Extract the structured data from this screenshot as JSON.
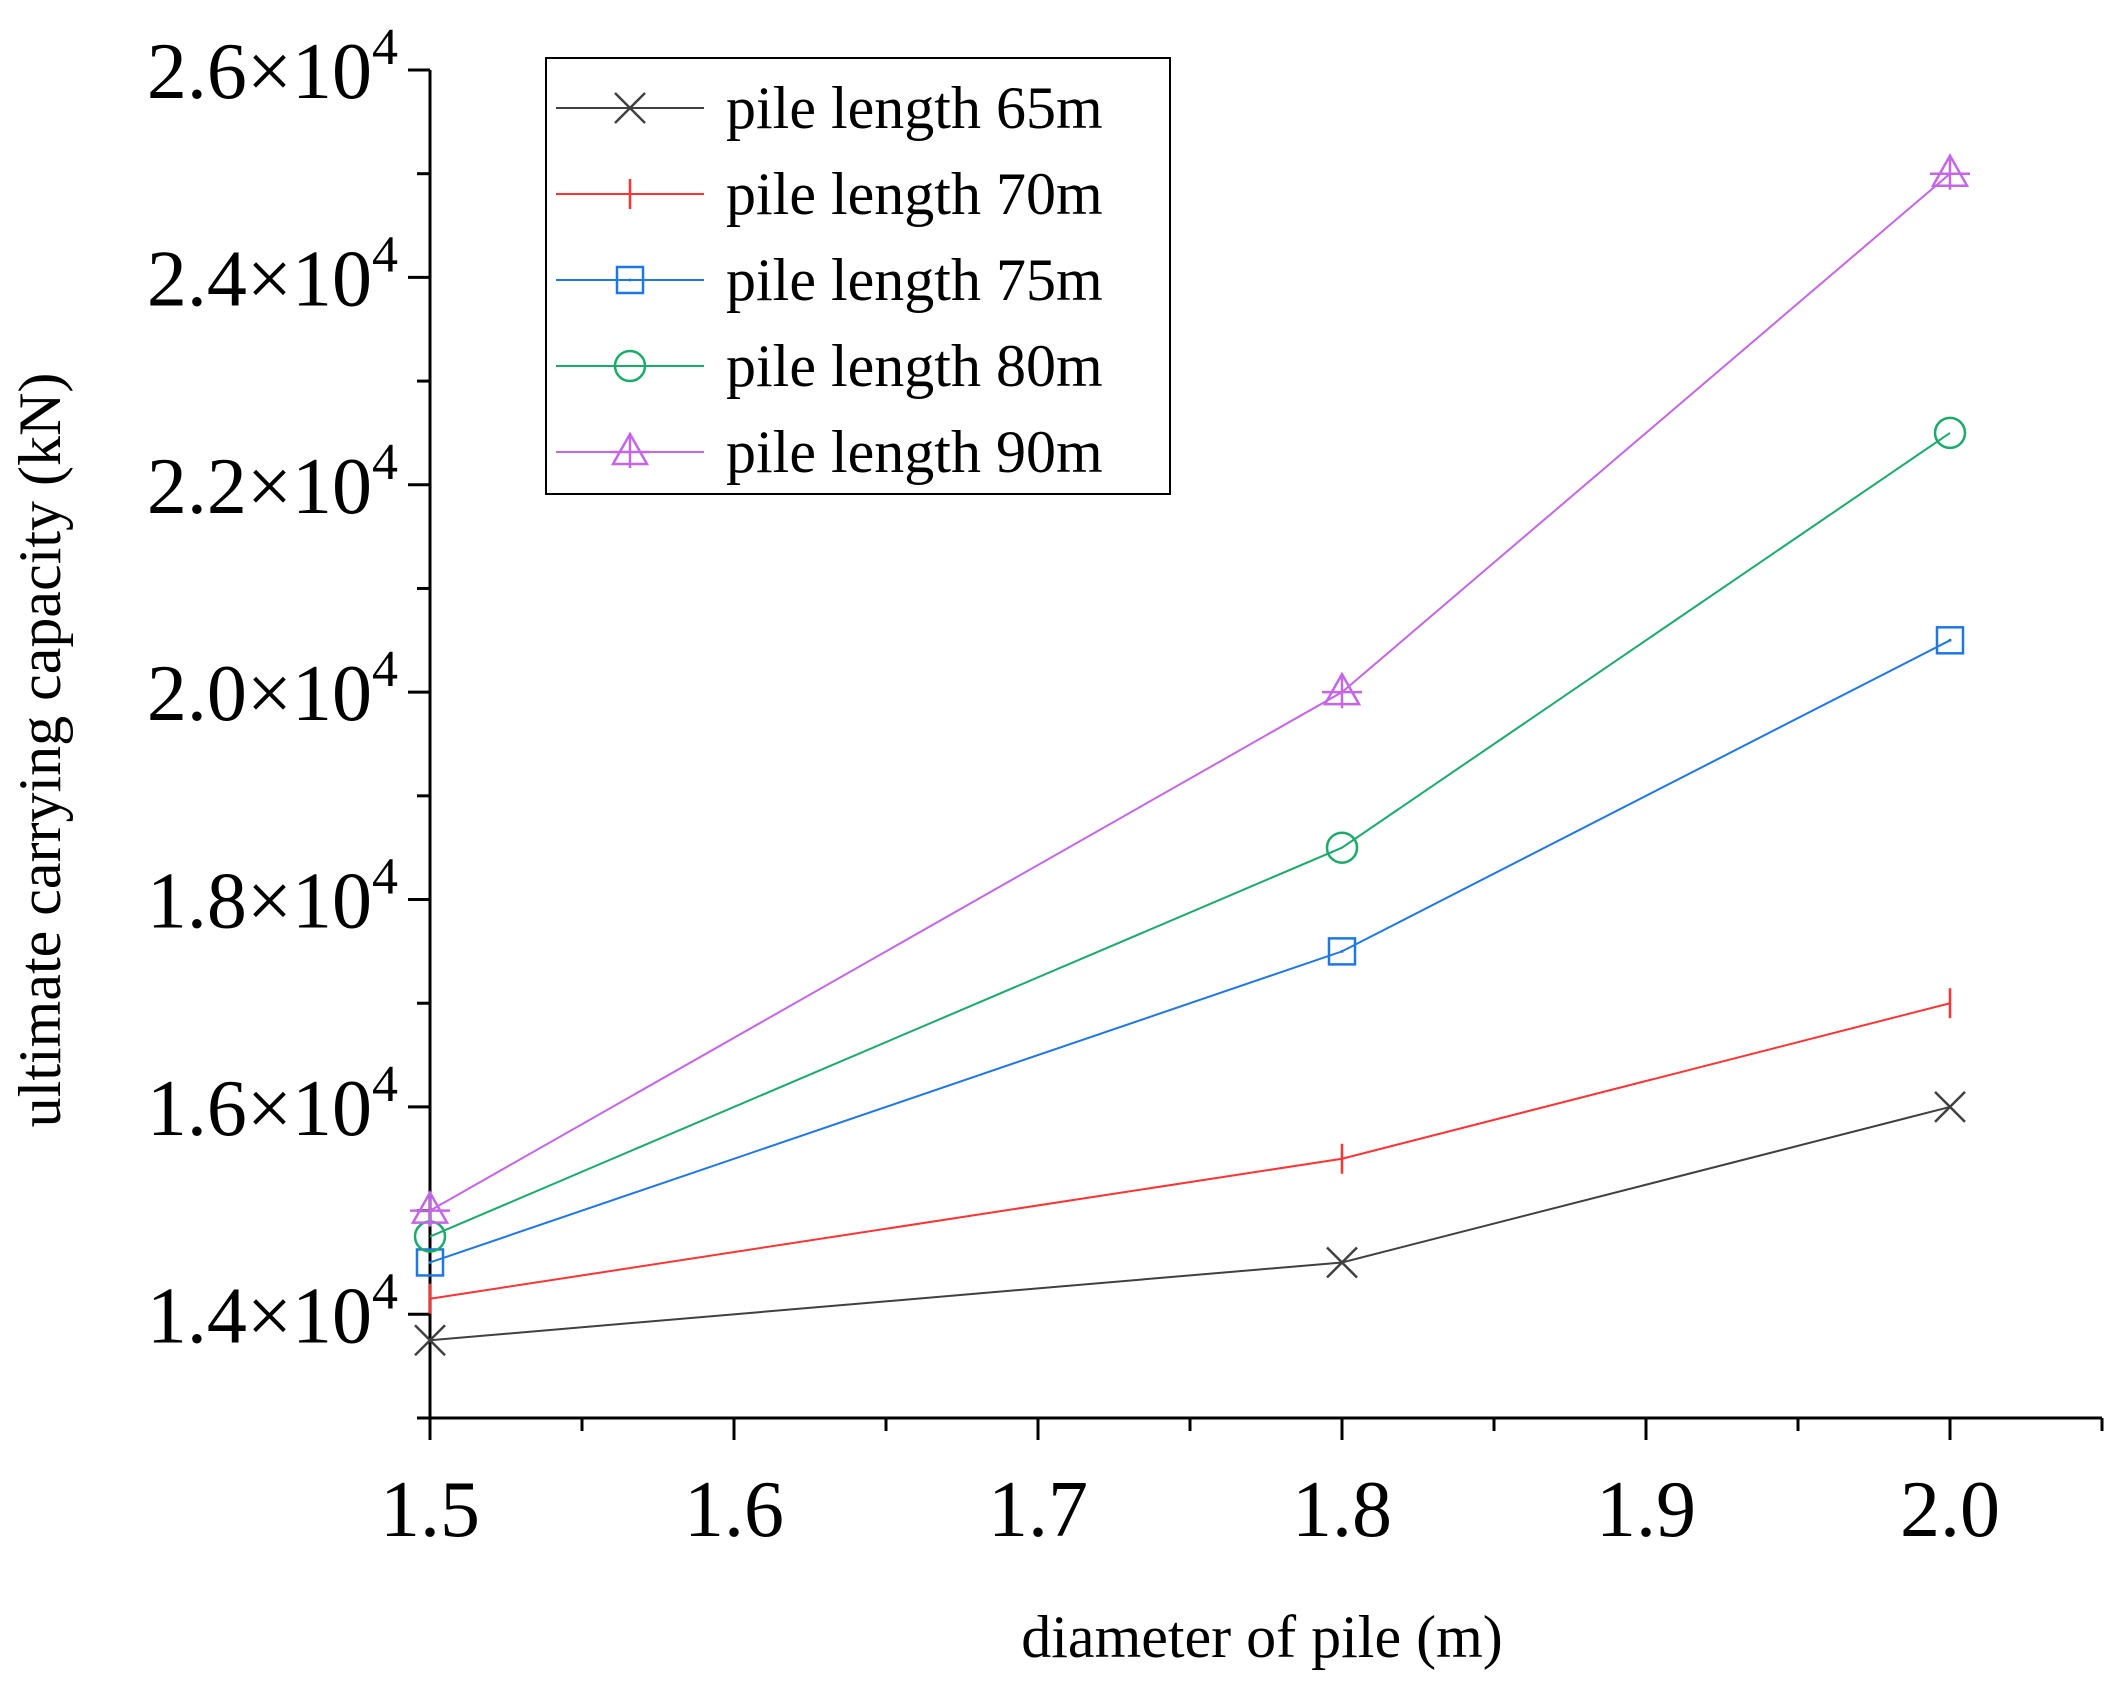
{
  "chart_data": {
    "type": "line",
    "title": "",
    "xlabel": "diameter of pile (m)",
    "ylabel": "ultimate carrying capacity (kN)",
    "xlim": [
      1.5,
      2.05
    ],
    "ylim": [
      13000,
      26000
    ],
    "x": [
      1.5,
      1.8,
      2.0
    ],
    "x_ticks": [
      1.5,
      1.6,
      1.7,
      1.8,
      1.9,
      2.0
    ],
    "x_tick_labels": [
      "1.5",
      "1.6",
      "1.7",
      "1.8",
      "1.9",
      "2.0"
    ],
    "y_ticks": [
      14000,
      16000,
      18000,
      20000,
      22000,
      24000,
      26000
    ],
    "y_tick_mantissas": [
      "1.4",
      "1.6",
      "1.8",
      "2.0",
      "2.2",
      "2.4",
      "2.6"
    ],
    "y_tick_times": "×10",
    "y_tick_exponent": "4",
    "grid": false,
    "legend_position": "top-left",
    "series": [
      {
        "name": "pile length 65m",
        "color": "#404040",
        "marker": "x-mark",
        "values": [
          13750,
          14500,
          16000
        ]
      },
      {
        "name": "pile length 70m",
        "color": "#ff3333",
        "marker": "vertical-bar",
        "values": [
          14150,
          15500,
          17000
        ]
      },
      {
        "name": "pile length 75m",
        "color": "#1f77e6",
        "marker": "square",
        "values": [
          14500,
          17500,
          20500
        ]
      },
      {
        "name": "pile length 80m",
        "color": "#1aab6b",
        "marker": "circle",
        "values": [
          14750,
          18500,
          22500
        ]
      },
      {
        "name": "pile length 90m",
        "color": "#c466e6",
        "marker": "triangle",
        "values": [
          15000,
          20000,
          25000
        ]
      }
    ]
  }
}
